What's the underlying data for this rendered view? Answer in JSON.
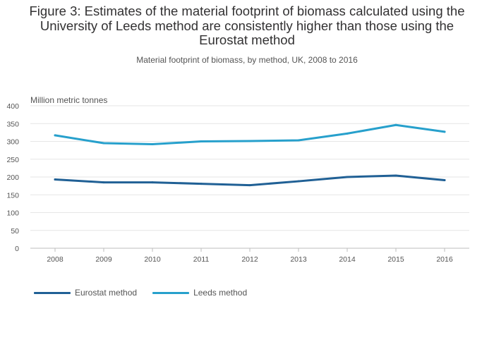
{
  "chart_data": {
    "type": "line",
    "title": "Figure 3: Estimates of the material footprint of biomass calculated using the University of Leeds method are consistently higher than those using the Eurostat method",
    "subtitle": "Material footprint of biomass, by method, UK, 2008 to 2016",
    "ylabel": "Million metric tonnes",
    "xlabel": "",
    "x": [
      "2008",
      "2009",
      "2010",
      "2011",
      "2012",
      "2013",
      "2014",
      "2015",
      "2016"
    ],
    "ylim": [
      0,
      400
    ],
    "yticks": [
      0,
      50,
      100,
      150,
      200,
      250,
      300,
      350,
      400
    ],
    "grid": true,
    "legend_position": "bottom-left",
    "series": [
      {
        "name": "Eurostat method",
        "color": "#206095",
        "values": [
          193,
          185,
          185,
          181,
          177,
          188,
          200,
          204,
          191
        ]
      },
      {
        "name": "Leeds method",
        "color": "#27a0cc",
        "values": [
          317,
          295,
          292,
          300,
          301,
          303,
          322,
          346,
          327
        ]
      }
    ]
  }
}
